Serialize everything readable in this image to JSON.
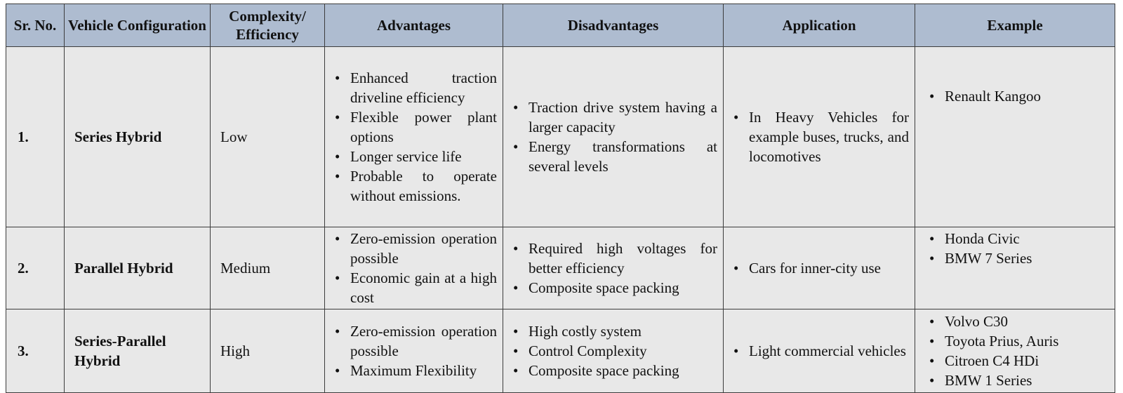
{
  "headers": {
    "sr": "Sr. No.",
    "config": "Vehicle Configuration",
    "complexity": "Complexity/ Efficiency",
    "advantages": "Advantages",
    "disadvantages": "Disadvantages",
    "application": "Application",
    "example": "Example"
  },
  "rows": [
    {
      "sr": "1.",
      "config": "Series Hybrid",
      "complexity": "Low",
      "advantages": [
        "Enhanced traction driveline efficiency",
        "Flexible power plant options",
        "Longer service life",
        "Probable to operate without emissions."
      ],
      "disadvantages": [
        "Traction drive system having a larger capacity",
        "Energy transformations at several levels"
      ],
      "application": [
        "In Heavy Vehicles for example buses, trucks, and locomotives"
      ],
      "example": [
        "Renault Kangoo"
      ]
    },
    {
      "sr": "2.",
      "config": "Parallel Hybrid",
      "complexity": "Medium",
      "advantages": [
        "Zero-emission operation possible",
        "Economic gain at a high cost"
      ],
      "disadvantages": [
        "Required high voltages for better efficiency",
        "Composite space packing"
      ],
      "application": [
        "Cars for inner-city use"
      ],
      "example": [
        "Honda Civic",
        "BMW 7 Series"
      ]
    },
    {
      "sr": "3.",
      "config": "Series-Parallel Hybrid",
      "complexity": "High",
      "advantages": [
        "Zero-emission operation possible",
        "Maximum Flexibility"
      ],
      "disadvantages": [
        "High costly system",
        "Control Complexity",
        "Composite space packing"
      ],
      "application": [
        "Light commercial vehicles"
      ],
      "example": [
        "Volvo C30",
        "Toyota Prius, Auris",
        "Citroen C4 HDi",
        "BMW 1 Series"
      ]
    }
  ]
}
